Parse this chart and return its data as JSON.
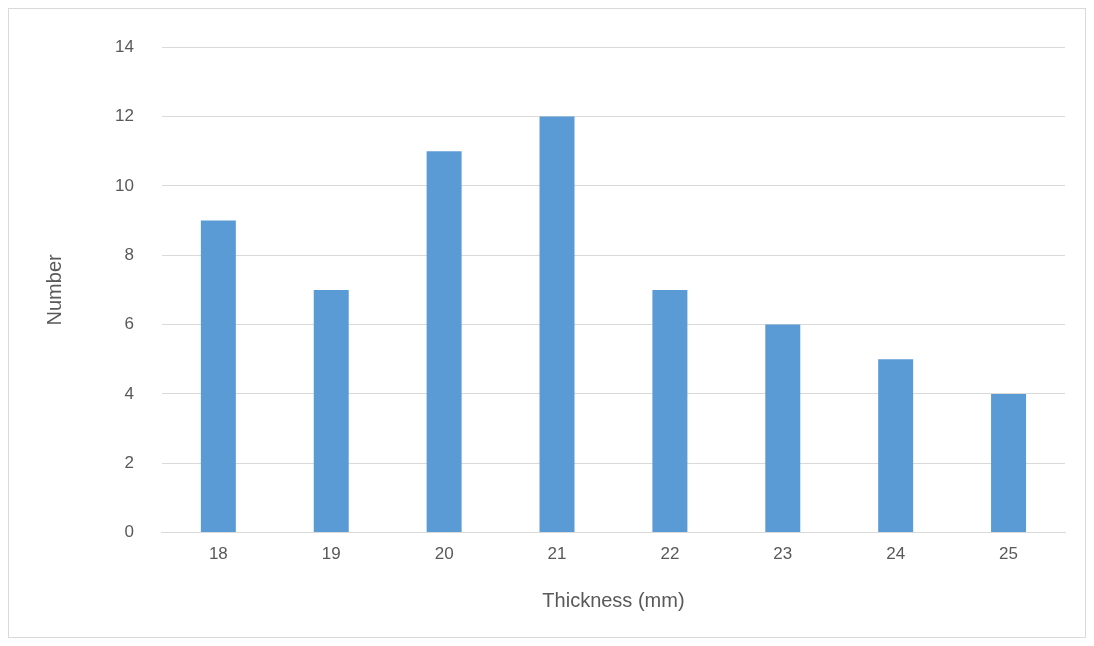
{
  "chart_data": {
    "type": "bar",
    "xlabel": "Thickness (mm)",
    "ylabel": "Number",
    "categories": [
      "18",
      "19",
      "20",
      "21",
      "22",
      "23",
      "24",
      "25"
    ],
    "values": [
      9,
      7,
      11,
      12,
      7,
      6,
      5,
      4
    ],
    "color": "#5b9bd5",
    "ylim": [
      0,
      14
    ],
    "yticks": [
      0,
      2,
      4,
      6,
      8,
      10,
      12,
      14
    ],
    "grid": "y",
    "legend": false
  }
}
